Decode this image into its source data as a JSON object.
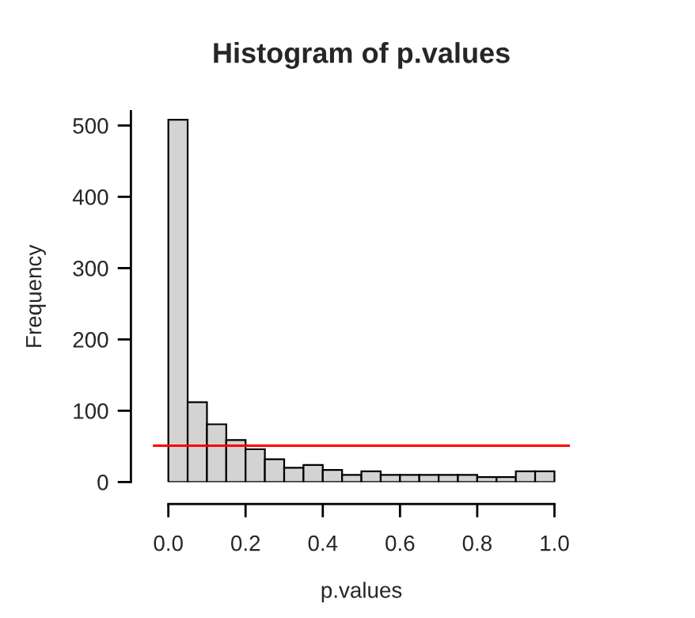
{
  "chart_data": {
    "type": "histogram",
    "title": "Histogram of p.values",
    "xlabel": "p.values",
    "ylabel": "Frequency",
    "bins": [
      0,
      0.05,
      0.1,
      0.15,
      0.2,
      0.25,
      0.3,
      0.35,
      0.4,
      0.45,
      0.5,
      0.55,
      0.6,
      0.65,
      0.7,
      0.75,
      0.8,
      0.85,
      0.9,
      0.95,
      1.0
    ],
    "values": [
      508,
      112,
      81,
      59,
      46,
      32,
      20,
      24,
      17,
      10,
      15,
      10,
      10,
      10,
      10,
      10,
      7,
      7,
      15,
      15
    ],
    "color": "#d3d3d3",
    "xlim": [
      -0.04,
      1.04
    ],
    "xticks": [
      {
        "value": 0,
        "label": "0.0"
      },
      0.2,
      0.4,
      0.6,
      0.8,
      {
        "value": 1,
        "label": "1.0"
      }
    ],
    "ylim": [
      0,
      520
    ],
    "yticks": [
      0,
      100,
      200,
      300,
      400,
      500
    ],
    "ref_lines": [
      {
        "axis": "y",
        "value": 51,
        "color": "#ff0000"
      }
    ],
    "grid": false
  }
}
